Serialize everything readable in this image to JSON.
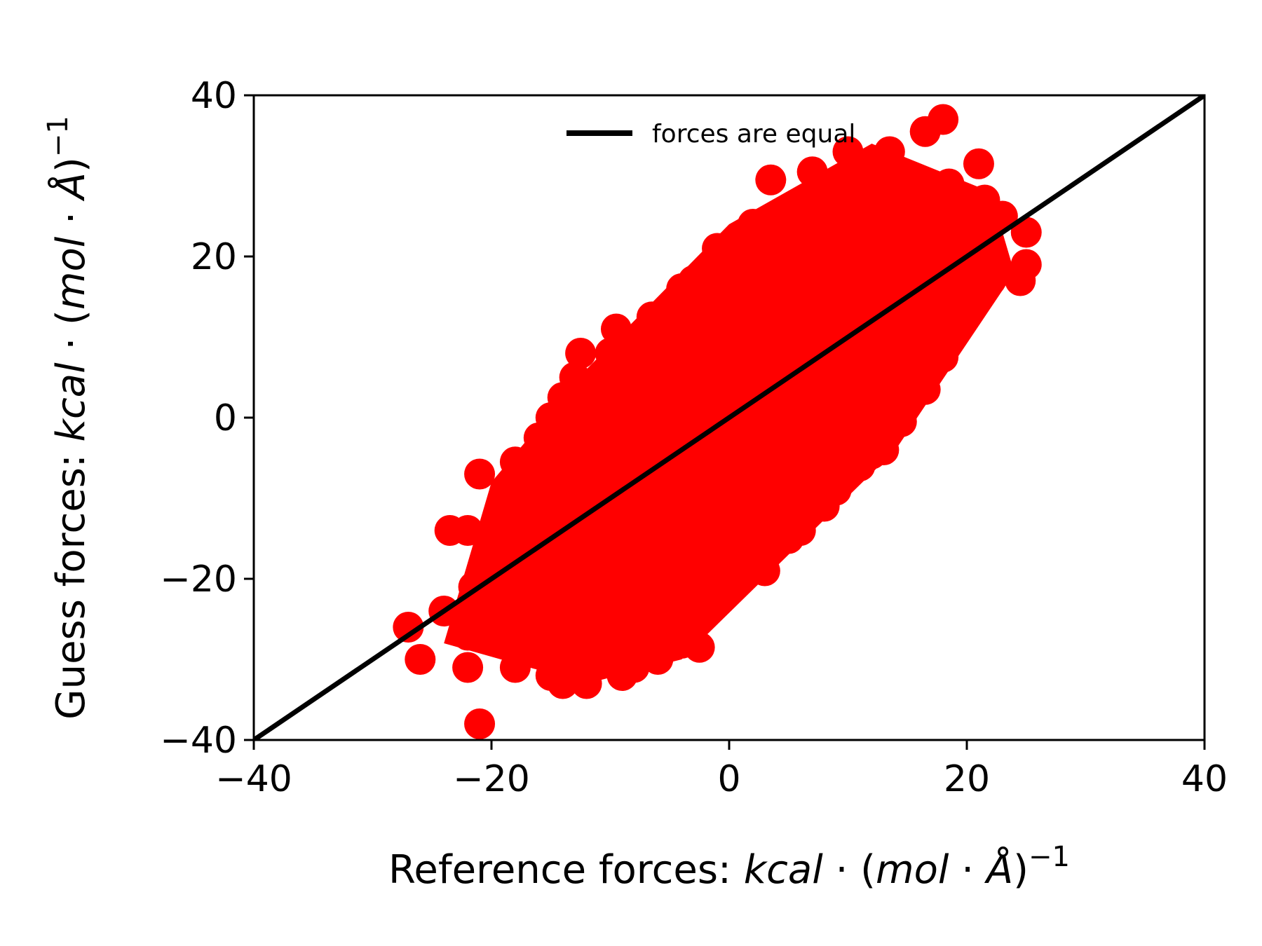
{
  "chart_data": {
    "type": "scatter",
    "title": "",
    "xlabel": {
      "plain": "Reference forces: ",
      "math": [
        "kcal",
        " · (",
        "mol",
        " · ",
        "Å",
        ")"
      ],
      "exp": "−1"
    },
    "ylabel": {
      "plain": "Guess forces: ",
      "math": [
        "kcal",
        " · (",
        "mol",
        " · ",
        "Å",
        ")"
      ],
      "exp": "−1"
    },
    "xlim": [
      -40,
      40
    ],
    "ylim": [
      -40,
      40
    ],
    "xticks": [
      -40,
      -20,
      0,
      20,
      40
    ],
    "yticks": [
      -40,
      -20,
      0,
      20,
      40
    ],
    "xtick_labels": [
      "−40",
      "−20",
      "0",
      "20",
      "40"
    ],
    "ytick_labels": [
      "−40",
      "−20",
      "0",
      "20",
      "40"
    ],
    "grid": false,
    "legend": {
      "placement": "upper-center",
      "entries": [
        {
          "name": "forces are equal",
          "color": "#000000",
          "kind": "line"
        }
      ]
    },
    "series": [
      {
        "kind": "scatter",
        "color": "#ff0000",
        "points": [
          [
            -21,
            -38
          ],
          [
            -26,
            -30
          ],
          [
            -27,
            -26
          ],
          [
            -22,
            -31
          ],
          [
            -24,
            -24
          ],
          [
            -22,
            -27
          ],
          [
            -23.5,
            -14
          ],
          [
            -21,
            -7
          ],
          [
            -22,
            -14
          ],
          [
            -20,
            -18
          ],
          [
            -21.5,
            -21
          ],
          [
            -20.5,
            -22
          ],
          [
            -19,
            -28
          ],
          [
            -18,
            -5.5
          ],
          [
            -17,
            -8
          ],
          [
            -16,
            -2.5
          ],
          [
            -15,
            -2
          ],
          [
            -16.5,
            -14
          ],
          [
            -18,
            -31
          ],
          [
            -15,
            -32
          ],
          [
            -14,
            -33
          ],
          [
            -12,
            -33
          ],
          [
            -9,
            -32
          ],
          [
            -8,
            -31
          ],
          [
            -6,
            -30
          ],
          [
            -4,
            -28
          ],
          [
            -2.5,
            -28.5
          ],
          [
            -4,
            -25
          ],
          [
            -1,
            -22
          ],
          [
            1.5,
            -19
          ],
          [
            3,
            -19
          ],
          [
            5,
            -15
          ],
          [
            6,
            -14
          ],
          [
            8,
            -11
          ],
          [
            9,
            -9
          ],
          [
            11,
            -6
          ],
          [
            12,
            -4.5
          ],
          [
            13,
            -4
          ],
          [
            14.5,
            -0.5
          ],
          [
            16.5,
            3.5
          ],
          [
            18,
            7.5
          ],
          [
            19,
            11
          ],
          [
            20,
            15
          ],
          [
            22,
            17
          ],
          [
            24.5,
            17
          ],
          [
            25,
            19
          ],
          [
            25,
            23
          ],
          [
            23,
            25
          ],
          [
            21.5,
            27
          ],
          [
            21,
            31.5
          ],
          [
            18.5,
            29
          ],
          [
            18,
            37
          ],
          [
            16.5,
            35.5
          ],
          [
            13.5,
            33
          ],
          [
            10,
            33
          ],
          [
            7,
            30.5
          ],
          [
            3.5,
            29.5
          ],
          [
            2,
            24
          ],
          [
            -1,
            21
          ],
          [
            -0.5,
            19
          ],
          [
            -3,
            17
          ],
          [
            -4,
            16
          ],
          [
            -6.5,
            12.5
          ],
          [
            -9.5,
            11
          ],
          [
            -12.5,
            8
          ],
          [
            -13,
            5
          ],
          [
            -14,
            2.5
          ],
          [
            -15,
            0
          ],
          [
            -12,
            -10
          ],
          [
            -8,
            -15
          ],
          [
            -10,
            -20
          ],
          [
            -6,
            -22
          ],
          [
            -4,
            -8
          ],
          [
            -2,
            -12
          ],
          [
            0,
            -5
          ],
          [
            2,
            2
          ],
          [
            4,
            -3
          ],
          [
            6,
            6
          ],
          [
            8,
            10
          ],
          [
            10,
            14
          ],
          [
            12,
            18
          ],
          [
            14,
            22
          ],
          [
            16,
            25
          ],
          [
            12,
            26
          ],
          [
            8,
            24
          ],
          [
            4,
            20
          ],
          [
            0,
            14
          ],
          [
            -4,
            10
          ],
          [
            -8,
            6
          ],
          [
            -10,
            0
          ],
          [
            -12,
            -4
          ],
          [
            -6,
            0
          ],
          [
            -2,
            4
          ],
          [
            2,
            8
          ],
          [
            6,
            12
          ],
          [
            10,
            20
          ],
          [
            14,
            28
          ],
          [
            16,
            10
          ],
          [
            12,
            4
          ],
          [
            8,
            0
          ],
          [
            4,
            -10
          ],
          [
            0,
            -15
          ],
          [
            -2,
            -20
          ],
          [
            -6,
            -26
          ],
          [
            -10,
            -28
          ],
          [
            -14,
            -26
          ],
          [
            -16,
            -20
          ],
          [
            -18,
            -12
          ],
          [
            -16,
            -8
          ],
          [
            -12,
            -15
          ],
          [
            -8,
            -10
          ],
          [
            -4,
            -4
          ],
          [
            0,
            2
          ],
          [
            4,
            6
          ],
          [
            8,
            16
          ],
          [
            12,
            12
          ],
          [
            16,
            18
          ],
          [
            20,
            22
          ],
          [
            18,
            20
          ],
          [
            14,
            16
          ],
          [
            10,
            6
          ],
          [
            6,
            2
          ],
          [
            2,
            -6
          ],
          [
            -2,
            -2
          ],
          [
            -6,
            4
          ],
          [
            -10,
            8
          ],
          [
            -8,
            -20
          ],
          [
            -4,
            -16
          ],
          [
            0,
            -10
          ],
          [
            4,
            0
          ],
          [
            6,
            -6
          ],
          [
            10,
            -2
          ],
          [
            14,
            8
          ],
          [
            18,
            14
          ],
          [
            20,
            26
          ],
          [
            -10,
            -12
          ],
          [
            -14,
            -6
          ],
          [
            -18,
            -22
          ],
          [
            -12,
            -24
          ],
          [
            -6,
            -18
          ],
          [
            -2,
            -8
          ],
          [
            2,
            12
          ],
          [
            6,
            18
          ],
          [
            0,
            8
          ],
          [
            -6,
            8
          ],
          [
            -2,
            12
          ]
        ],
        "note": "markers sampled along the dense cloud; clipped to the plotting area"
      },
      {
        "name": "forces are equal",
        "kind": "line",
        "color": "#000000",
        "x": [
          -40,
          40
        ],
        "y": [
          -40,
          40
        ]
      }
    ]
  }
}
